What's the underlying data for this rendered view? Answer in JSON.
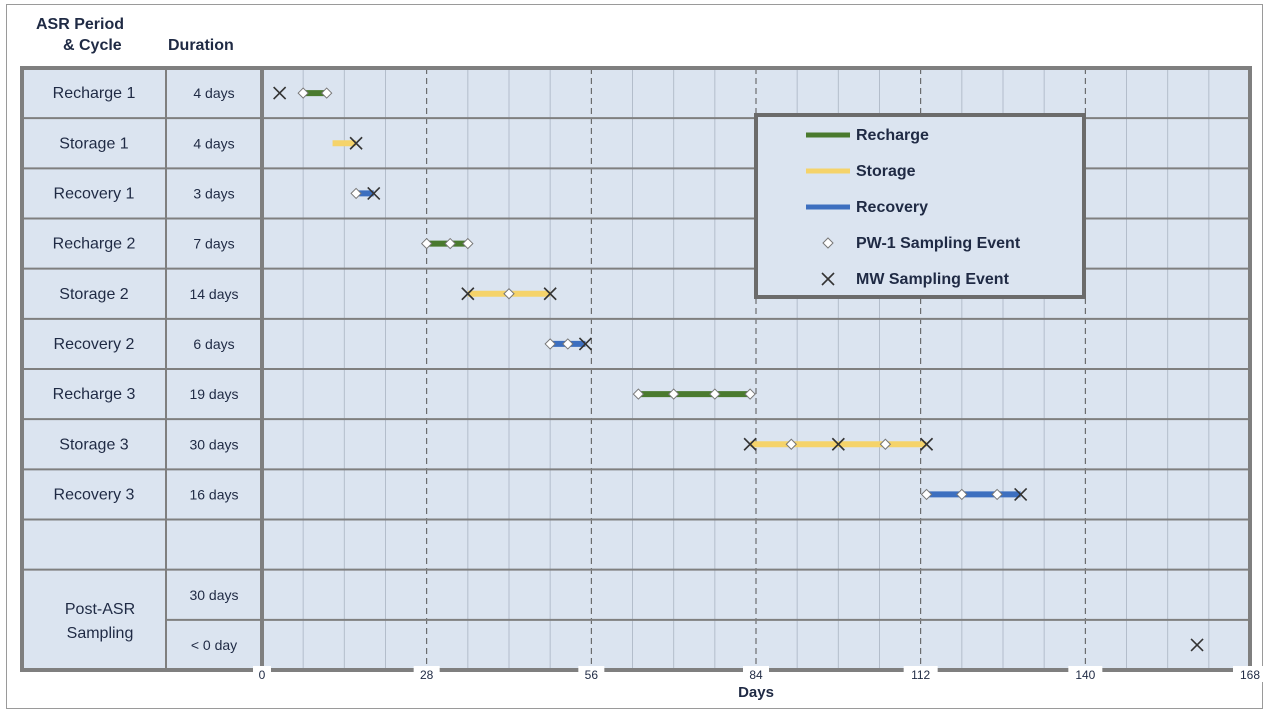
{
  "header": {
    "col1_line1": "ASR Period",
    "col1_line2": "& Cycle",
    "col2": "Duration"
  },
  "chart_data": {
    "type": "gantt",
    "xlabel": "Days",
    "xlim": [
      0,
      168
    ],
    "xticks": [
      0,
      28,
      56,
      84,
      112,
      140,
      168
    ],
    "minor_grid_step_days": 7,
    "grid": true,
    "rows": [
      {
        "period": "Recharge 1",
        "duration": "4 days",
        "phase": "Recharge",
        "start": 7,
        "end": 11,
        "pw1": [
          7,
          11
        ],
        "mw": [
          3
        ]
      },
      {
        "period": "Storage 1",
        "duration": "4 days",
        "phase": "Storage",
        "start": 12,
        "end": 16,
        "pw1": [],
        "mw": [
          16
        ]
      },
      {
        "period": "Recovery 1",
        "duration": "3 days",
        "phase": "Recovery",
        "start": 16,
        "end": 19,
        "pw1": [
          16
        ],
        "mw": [
          19
        ]
      },
      {
        "period": "Recharge 2",
        "duration": "7 days",
        "phase": "Recharge",
        "start": 28,
        "end": 35,
        "pw1": [
          28,
          32,
          35
        ],
        "mw": []
      },
      {
        "period": "Storage 2",
        "duration": "14 days",
        "phase": "Storage",
        "start": 35,
        "end": 49,
        "pw1": [
          42
        ],
        "mw": [
          35,
          49
        ]
      },
      {
        "period": "Recovery 2",
        "duration": "6 days",
        "phase": "Recovery",
        "start": 49,
        "end": 55,
        "pw1": [
          49,
          52
        ],
        "mw": [
          55
        ]
      },
      {
        "period": "Recharge 3",
        "duration": "19 days",
        "phase": "Recharge",
        "start": 64,
        "end": 83,
        "pw1": [
          64,
          70,
          77,
          83
        ],
        "mw": []
      },
      {
        "period": "Storage 3",
        "duration": "30 days",
        "phase": "Storage",
        "start": 83,
        "end": 113,
        "pw1": [
          90,
          106
        ],
        "mw": [
          83,
          98,
          113
        ]
      },
      {
        "period": "Recovery 3",
        "duration": "16 days",
        "phase": "Recovery",
        "start": 113,
        "end": 129,
        "pw1": [
          113,
          119,
          125
        ],
        "mw": [
          129
        ]
      },
      {
        "period": "",
        "duration": "",
        "phase": "",
        "start": null,
        "end": null,
        "pw1": [],
        "mw": []
      },
      {
        "period": "Post-ASR Sampling",
        "duration": "30 days",
        "phase": "",
        "start": null,
        "end": null,
        "pw1": [],
        "mw": []
      },
      {
        "period": "",
        "duration": "< 0 day",
        "phase": "",
        "start": null,
        "end": null,
        "pw1": [],
        "mw": [
          159
        ]
      }
    ],
    "merged_label": "Post-ASR Sampling",
    "merged_label_lines": [
      "Post-ASR",
      "Sampling"
    ],
    "legend": {
      "placement": "top-right",
      "items": [
        {
          "label": "Recharge",
          "kind": "line",
          "color": "#4a7a2e"
        },
        {
          "label": "Storage",
          "kind": "line",
          "color": "#f5d36a"
        },
        {
          "label": "Recovery",
          "kind": "line",
          "color": "#3d6fbf"
        },
        {
          "label": "PW-1 Sampling Event",
          "kind": "diamond"
        },
        {
          "label": "MW Sampling Event",
          "kind": "x"
        }
      ]
    }
  },
  "colors": {
    "panel_bg": "#dbe4f0",
    "grid": "#b3bdcb",
    "border": "#7f7f7f",
    "text": "#1f2a44",
    "Recharge": "#4a7a2e",
    "Storage": "#f5d36a",
    "Recovery": "#3d6fbf"
  }
}
